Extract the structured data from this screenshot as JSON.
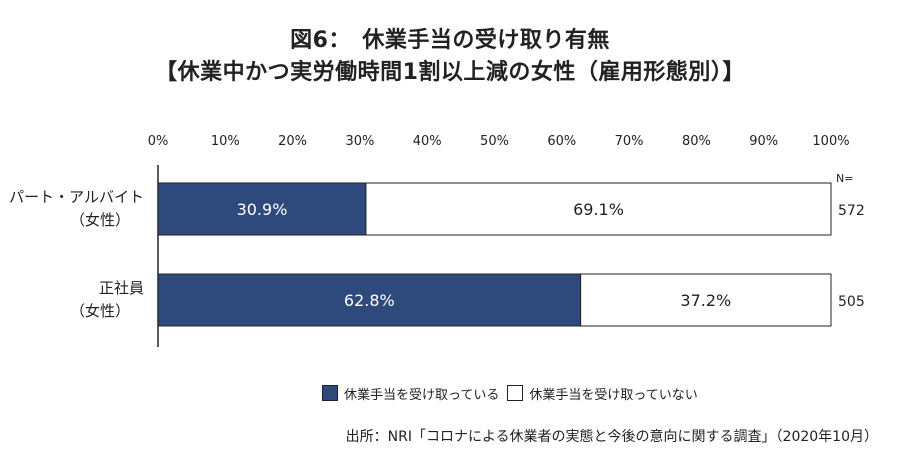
{
  "title_line1": "図6：　休業手当の受け取り有無",
  "title_line2": "【休業中かつ実労働時間1割以上減の女性（雇用形態別）】",
  "n_label": "N=",
  "source": "出所：NRI「コロナによる休業者の実態と今後の意向に関する調査」（2020年10月）",
  "colors": {
    "received": "#2e4a7d",
    "not_received": "#ffffff",
    "border": "#222222"
  },
  "chart_data": {
    "type": "bar",
    "orientation": "horizontal",
    "stacked": true,
    "xlim": [
      0,
      100
    ],
    "x_ticks": [
      "0%",
      "10%",
      "20%",
      "30%",
      "40%",
      "50%",
      "60%",
      "70%",
      "80%",
      "90%",
      "100%"
    ],
    "categories": [
      {
        "line1": "パート・アルバイト",
        "line2": "（女性）"
      },
      {
        "line1": "正社員",
        "line2": "（女性）"
      }
    ],
    "n_values": [
      "572",
      "505"
    ],
    "series": [
      {
        "name": "休業手当を受け取っている",
        "values": [
          30.9,
          62.8
        ],
        "labels": [
          "30.9%",
          "62.8%"
        ]
      },
      {
        "name": "休業手当を受け取っていない",
        "values": [
          69.1,
          37.2
        ],
        "labels": [
          "69.1%",
          "37.2%"
        ]
      }
    ],
    "legend_position": "bottom",
    "grid": false
  }
}
